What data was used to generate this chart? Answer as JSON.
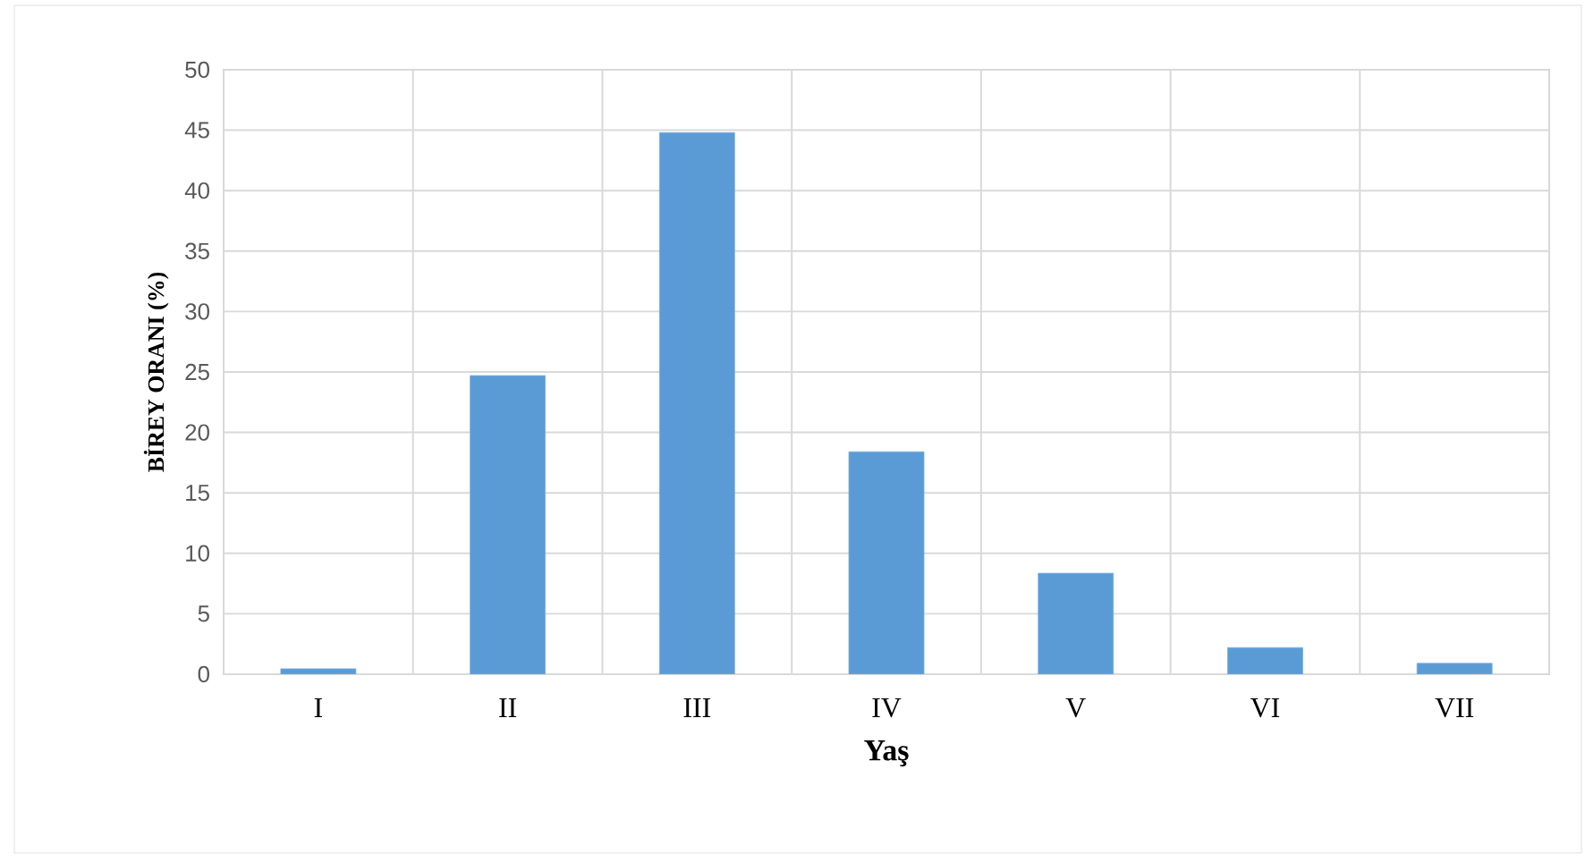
{
  "chart_data": {
    "type": "bar",
    "xlabel": "Yaş",
    "ylabel": "BİREY ORANI  (%)",
    "categories": [
      "I",
      "II",
      "III",
      "IV",
      "V",
      "VI",
      "VII"
    ],
    "values": [
      0.45,
      24.7,
      44.8,
      18.4,
      8.35,
      2.2,
      0.9
    ],
    "color": "#5b9bd5",
    "ylim": [
      0,
      50
    ],
    "yticks": [
      0,
      5,
      10,
      15,
      20,
      25,
      30,
      35,
      40,
      45,
      50
    ],
    "grid": true
  }
}
